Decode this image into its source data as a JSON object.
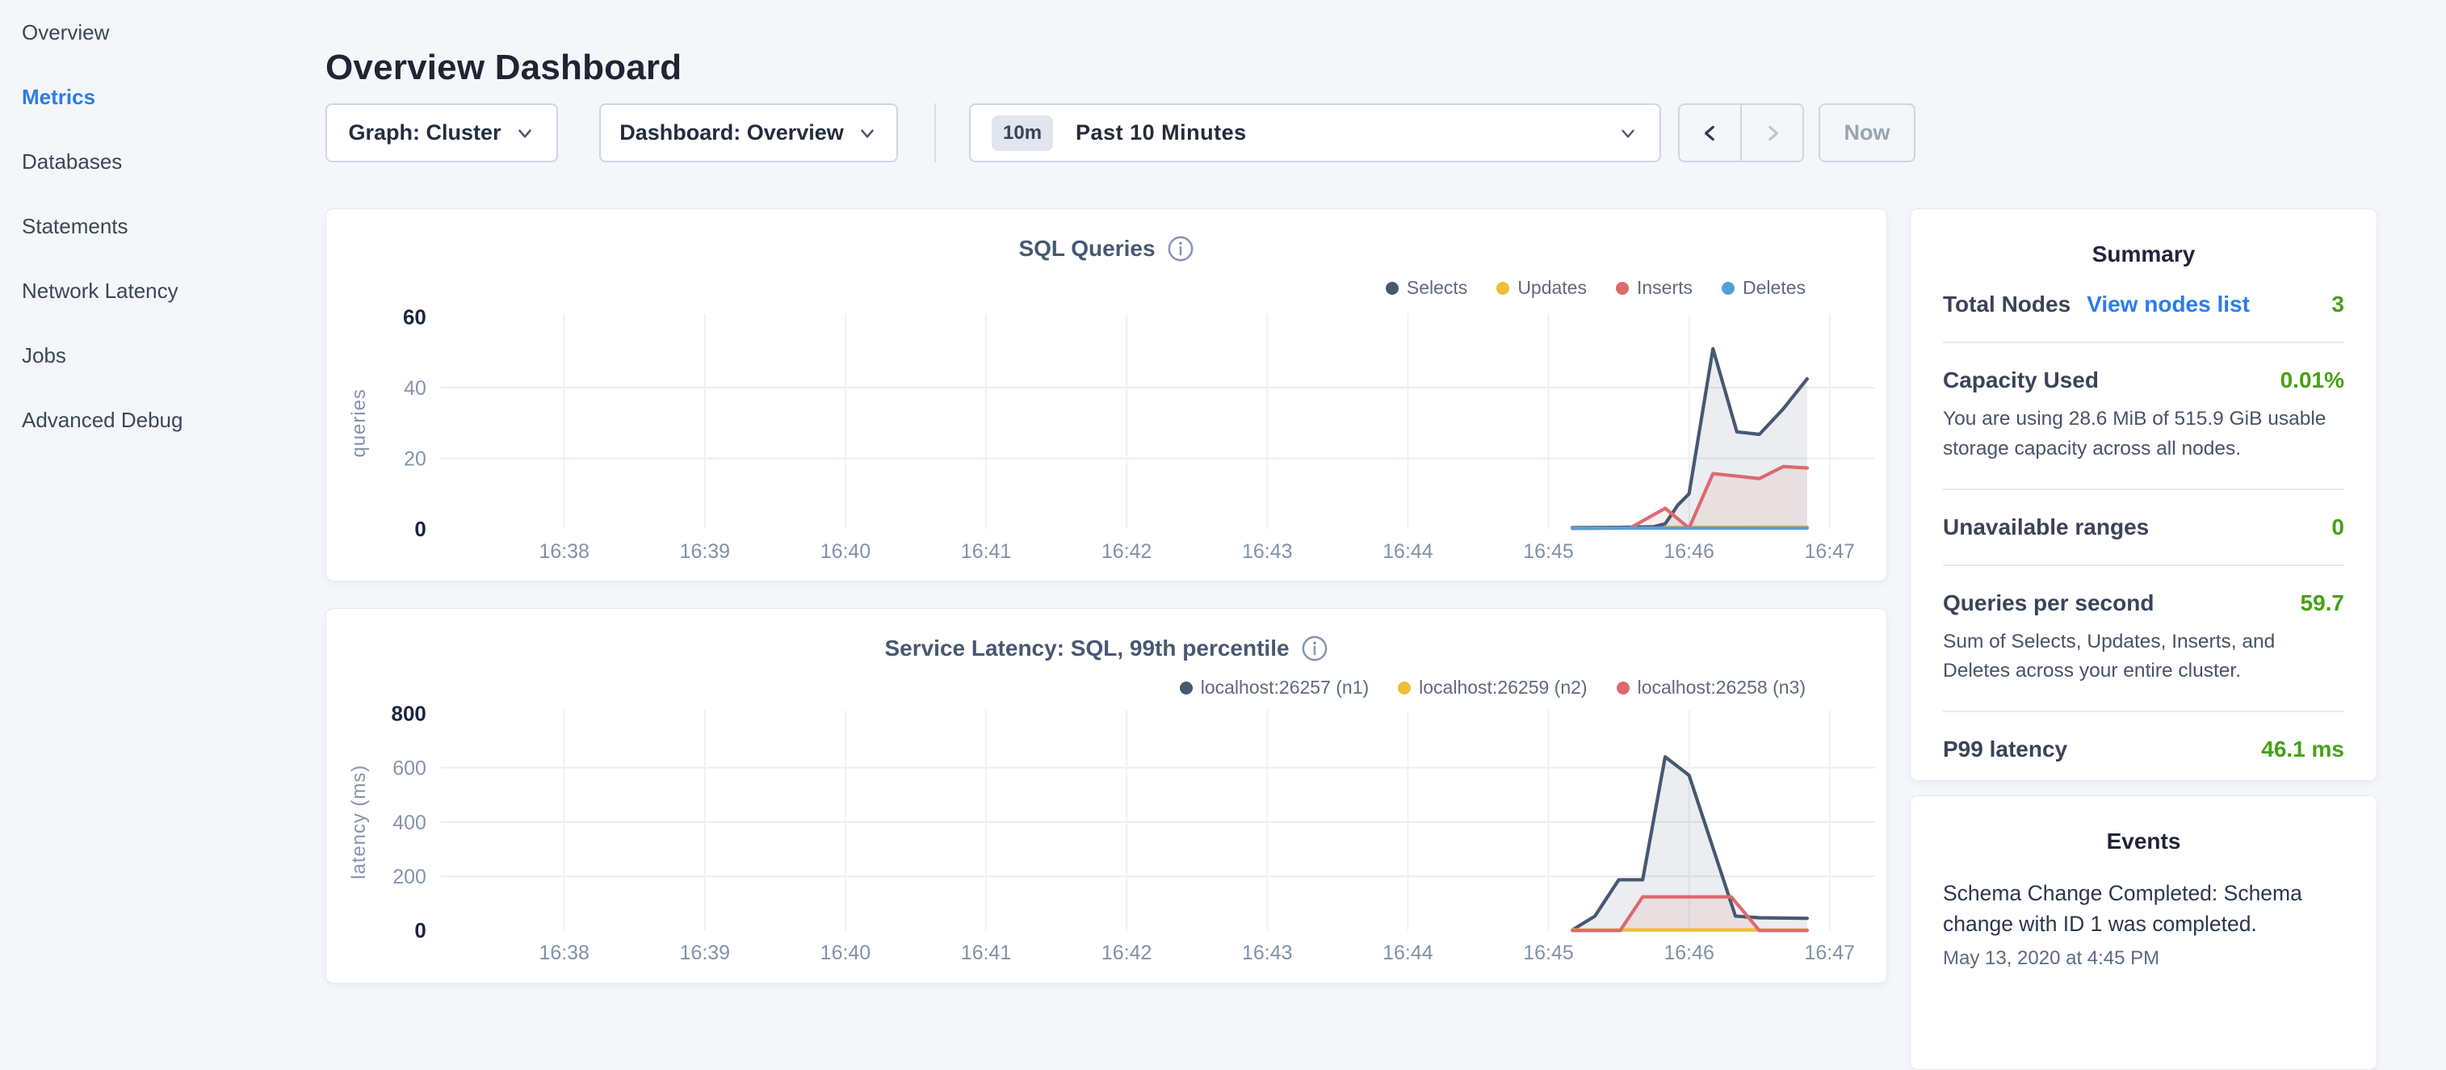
{
  "sidebar": {
    "items": [
      {
        "label": "Overview",
        "active": false
      },
      {
        "label": "Metrics",
        "active": true
      },
      {
        "label": "Databases",
        "active": false
      },
      {
        "label": "Statements",
        "active": false
      },
      {
        "label": "Network Latency",
        "active": false
      },
      {
        "label": "Jobs",
        "active": false
      },
      {
        "label": "Advanced Debug",
        "active": false
      }
    ]
  },
  "header": {
    "title": "Overview Dashboard"
  },
  "toolbar": {
    "graph_dropdown": "Graph: Cluster",
    "dashboard_dropdown": "Dashboard: Overview",
    "time_badge": "10m",
    "time_label": "Past 10 Minutes",
    "now_label": "Now"
  },
  "colors": {
    "accent": "#2b7ce9",
    "green": "#47a117",
    "navy_series": "#475872",
    "yellow_series": "#eebe38",
    "red_series": "#dc6a6e",
    "steel_series": "#549ed8"
  },
  "chart_data": [
    {
      "type": "line",
      "title": "SQL Queries",
      "ylabel": "queries",
      "ylim": [
        0,
        60
      ],
      "yticks": [
        0,
        20,
        40,
        60
      ],
      "x_ticks": [
        "16:38",
        "16:39",
        "16:40",
        "16:41",
        "16:42",
        "16:43",
        "16:44",
        "16:45",
        "16:46",
        "16:47"
      ],
      "legend_position": "top-right",
      "grid": true,
      "series": [
        {
          "name": "Selects",
          "color": "#475872",
          "fill": true,
          "points": [
            [
              7.17,
              0.4
            ],
            [
              7.5,
              0.5
            ],
            [
              7.75,
              0.7
            ],
            [
              7.83,
              1.5
            ],
            [
              7.92,
              6.8
            ],
            [
              8.0,
              10
            ],
            [
              8.17,
              51
            ],
            [
              8.34,
              27.5
            ],
            [
              8.5,
              26.8
            ],
            [
              8.67,
              34
            ],
            [
              8.84,
              42.5
            ]
          ]
        },
        {
          "name": "Updates",
          "color": "#eebe38",
          "fill": false,
          "points": [
            [
              7.17,
              0.5
            ],
            [
              8.84,
              0.6
            ]
          ]
        },
        {
          "name": "Inserts",
          "color": "#dc6a6e",
          "fill": true,
          "points": [
            [
              7.17,
              0.2
            ],
            [
              7.58,
              0.3
            ],
            [
              7.83,
              5.9
            ],
            [
              8.0,
              0.3
            ],
            [
              8.17,
              15.7
            ],
            [
              8.34,
              15.0
            ],
            [
              8.5,
              14.3
            ],
            [
              8.67,
              17.7
            ],
            [
              8.84,
              17.3
            ]
          ]
        },
        {
          "name": "Deletes",
          "color": "#549ed8",
          "fill": false,
          "points": [
            [
              7.17,
              0.3
            ],
            [
              8.84,
              0.3
            ]
          ]
        }
      ]
    },
    {
      "type": "line",
      "title": "Service Latency: SQL, 99th percentile",
      "ylabel": "latency (ms)",
      "ylim": [
        0,
        800
      ],
      "yticks": [
        0,
        200,
        400,
        600,
        800
      ],
      "x_ticks": [
        "16:38",
        "16:39",
        "16:40",
        "16:41",
        "16:42",
        "16:43",
        "16:44",
        "16:45",
        "16:46",
        "16:47"
      ],
      "legend_position": "top-right",
      "grid": true,
      "series": [
        {
          "name": "localhost:26257 (n1)",
          "color": "#475872",
          "fill": true,
          "points": [
            [
              7.17,
              2
            ],
            [
              7.33,
              53
            ],
            [
              7.5,
              187
            ],
            [
              7.67,
              187
            ],
            [
              7.83,
              640
            ],
            [
              8.0,
              572
            ],
            [
              8.33,
              53
            ],
            [
              8.5,
              47
            ],
            [
              8.84,
              45
            ]
          ]
        },
        {
          "name": "localhost:26259 (n2)",
          "color": "#eebe38",
          "fill": false,
          "points": [
            [
              7.17,
              2
            ],
            [
              8.84,
              2
            ]
          ]
        },
        {
          "name": "localhost:26258 (n3)",
          "color": "#dc6a6e",
          "fill": true,
          "points": [
            [
              7.17,
              0
            ],
            [
              7.51,
              0
            ],
            [
              7.67,
              124
            ],
            [
              8.3,
              124
            ],
            [
              8.5,
              0
            ],
            [
              8.84,
              0
            ]
          ]
        }
      ]
    }
  ],
  "summary": {
    "heading": "Summary",
    "rows": [
      {
        "label": "Total Nodes",
        "link": "View nodes list",
        "value": "3",
        "desc": ""
      },
      {
        "label": "Capacity Used",
        "value": "0.01%",
        "desc": "You are using 28.6 MiB of 515.9 GiB usable storage capacity across all nodes."
      },
      {
        "label": "Unavailable ranges",
        "value": "0",
        "desc": ""
      },
      {
        "label": "Queries per second",
        "value": "59.7",
        "desc": "Sum of Selects, Updates, Inserts, and Deletes across your entire cluster."
      },
      {
        "label": "P99 latency",
        "value": "46.1 ms",
        "desc": ""
      }
    ]
  },
  "events": {
    "heading": "Events",
    "items": [
      {
        "message": "Schema Change Completed: Schema change with ID 1 was completed.",
        "time": "May 13, 2020 at 4:45 PM"
      }
    ]
  }
}
